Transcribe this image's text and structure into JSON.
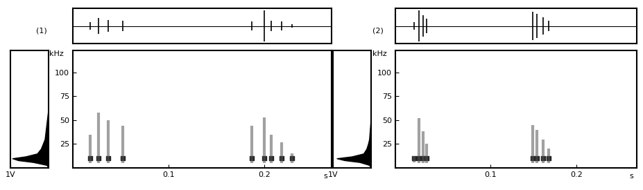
{
  "chart_data": [
    {
      "type": "spectrogram",
      "title": "(1)",
      "ylabel": "kHz",
      "xlabel": "s",
      "xlim": [
        0,
        0.27
      ],
      "ylim": [
        0,
        123
      ],
      "xticks": [
        0.1,
        0.2
      ],
      "yticks": [
        25,
        50,
        75,
        100
      ],
      "oscillogram_ylim": [
        -1,
        1
      ],
      "pulses": [
        {
          "time": 0.018,
          "fmin": 5,
          "fmax": 35,
          "peak": 10,
          "amplitude": 0.2
        },
        {
          "time": 0.027,
          "fmin": 5,
          "fmax": 58,
          "peak": 10,
          "amplitude": 0.45
        },
        {
          "time": 0.037,
          "fmin": 5,
          "fmax": 50,
          "peak": 10,
          "amplitude": 0.35
        },
        {
          "time": 0.052,
          "fmin": 5,
          "fmax": 44,
          "peak": 10,
          "amplitude": 0.3
        },
        {
          "time": 0.187,
          "fmin": 5,
          "fmax": 44,
          "peak": 10,
          "amplitude": 0.25
        },
        {
          "time": 0.2,
          "fmin": 5,
          "fmax": 53,
          "peak": 10,
          "amplitude": 0.9
        },
        {
          "time": 0.207,
          "fmin": 5,
          "fmax": 35,
          "peak": 10,
          "amplitude": 0.3
        },
        {
          "time": 0.218,
          "fmin": 5,
          "fmax": 27,
          "peak": 10,
          "amplitude": 0.25
        },
        {
          "time": 0.229,
          "fmin": 5,
          "fmax": 15,
          "peak": 10,
          "amplitude": 0.1
        }
      ],
      "spectrum": {
        "xlim": [
          1,
          0
        ],
        "xticks": [
          {
            "value": 1,
            "label": "1V"
          }
        ],
        "frequency": [
          0,
          3,
          6,
          8,
          10,
          12,
          15,
          20,
          25,
          30,
          40,
          50,
          60
        ],
        "amplitude": [
          0,
          0.05,
          0.4,
          0.8,
          0.95,
          0.6,
          0.3,
          0.2,
          0.15,
          0.1,
          0.07,
          0.04,
          0.01
        ]
      }
    },
    {
      "type": "spectrogram",
      "title": "(2)",
      "ylabel": "kHz",
      "xlabel": "s",
      "xlim": [
        -0.01,
        0.27
      ],
      "ylim": [
        0,
        123
      ],
      "xticks": [
        0.1,
        0.2
      ],
      "yticks": [
        25,
        50,
        75,
        100
      ],
      "oscillogram_ylim": [
        -1,
        1
      ],
      "pulses": [
        {
          "time": 0.012,
          "fmin": 6,
          "fmax": 12,
          "peak": 10,
          "amplitude": 0.2
        },
        {
          "time": 0.017,
          "fmin": 5,
          "fmax": 52,
          "peak": 10,
          "amplitude": 0.9
        },
        {
          "time": 0.022,
          "fmin": 5,
          "fmax": 38,
          "peak": 10,
          "amplitude": 0.6
        },
        {
          "time": 0.026,
          "fmin": 5,
          "fmax": 25,
          "peak": 10,
          "amplitude": 0.4
        },
        {
          "time": 0.149,
          "fmin": 5,
          "fmax": 45,
          "peak": 10,
          "amplitude": 0.8
        },
        {
          "time": 0.154,
          "fmin": 5,
          "fmax": 40,
          "peak": 10,
          "amplitude": 0.7
        },
        {
          "time": 0.161,
          "fmin": 5,
          "fmax": 30,
          "peak": 10,
          "amplitude": 0.5
        },
        {
          "time": 0.168,
          "fmin": 5,
          "fmax": 20,
          "peak": 10,
          "amplitude": 0.3
        }
      ],
      "spectrum": {
        "xlim": [
          1,
          0
        ],
        "xticks": [
          {
            "value": 1,
            "label": "1V"
          }
        ],
        "frequency": [
          0,
          3,
          6,
          8,
          10,
          12,
          15,
          20,
          25,
          30,
          40,
          50,
          60
        ],
        "amplitude": [
          0,
          0.05,
          0.3,
          0.7,
          0.9,
          0.5,
          0.2,
          0.12,
          0.08,
          0.05,
          0.03,
          0.01,
          0
        ]
      }
    }
  ]
}
